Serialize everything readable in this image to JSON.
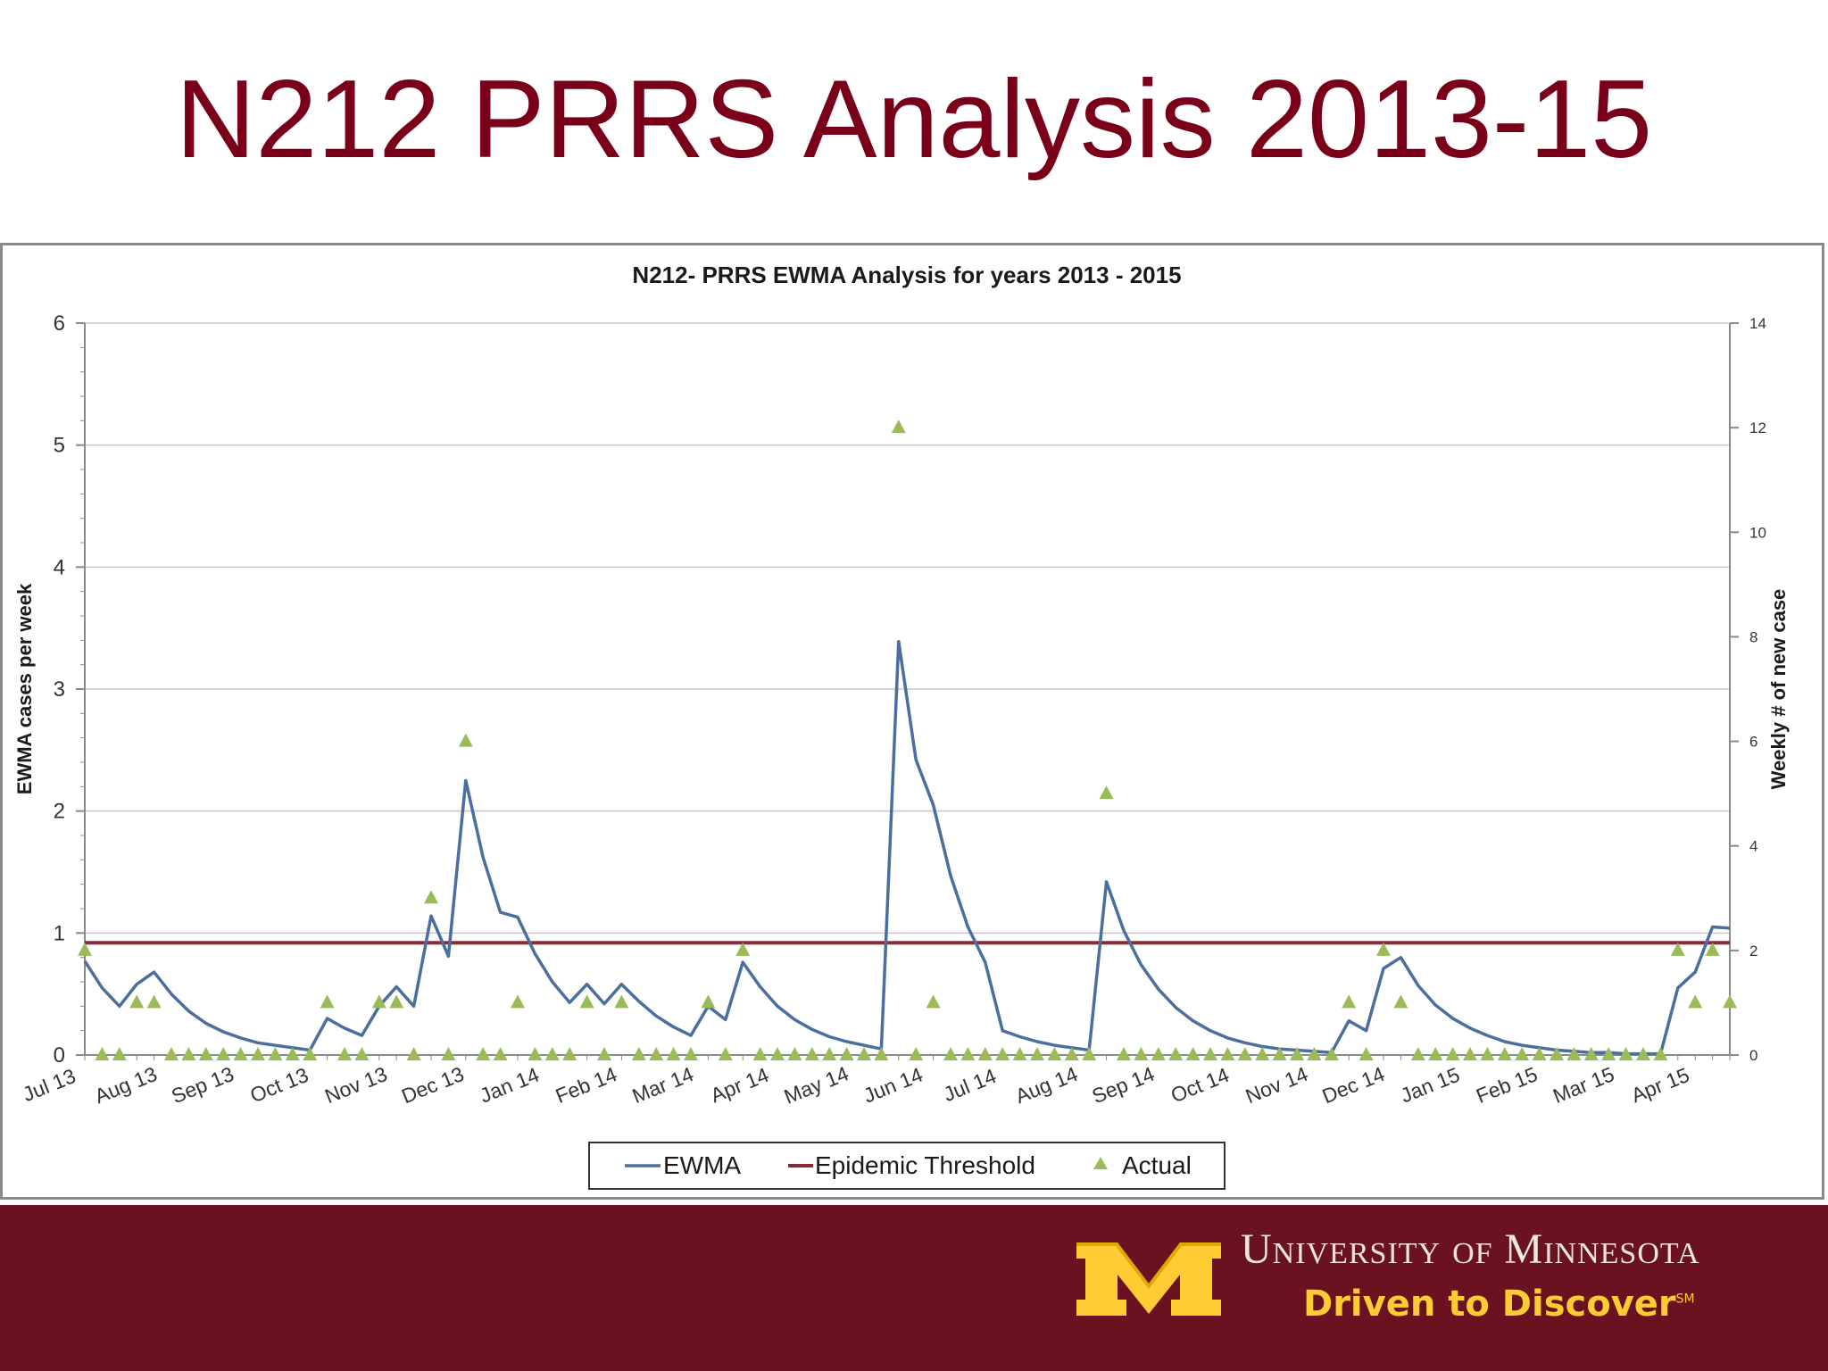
{
  "slide": {
    "title": "N212 PRRS Analysis 2013-15"
  },
  "footer": {
    "university": "University of Minnesota",
    "tagline": "Driven to Discover",
    "tagline_mark": "SM"
  },
  "colors": {
    "title": "#7a0019",
    "footer": "#6b1220",
    "gold": "#ffcc33",
    "ewma": "#4a6f9e",
    "threshold": "#8b2a36",
    "actual": "#9bbb59"
  },
  "chart_data": {
    "type": "line",
    "title": "N212- PRRS EWMA Analysis for years 2013 - 2015",
    "ylabel": "EWMA cases per week",
    "y2label": "Weekly # of new case",
    "ylim": [
      0,
      6
    ],
    "y2lim": [
      0,
      14
    ],
    "yticks": [
      "0",
      "1",
      "2",
      "3",
      "4",
      "5",
      "6"
    ],
    "y2ticks": [
      "0",
      "2",
      "4",
      "6",
      "8",
      "10",
      "12",
      "14"
    ],
    "grid": true,
    "legend_position": "bottom",
    "month_labels": [
      "Jul 13",
      "Aug 13",
      "Sep 13",
      "Oct 13",
      "Nov 13",
      "Dec 13",
      "Jan 14",
      "Feb 14",
      "Mar 14",
      "Apr 14",
      "May 14",
      "Jun 14",
      "Jul 14",
      "Aug 14",
      "Sep 14",
      "Oct 14",
      "Nov 14",
      "Dec 14",
      "Jan 15",
      "Feb 15",
      "Mar 15",
      "Apr 15"
    ],
    "series": [
      {
        "name": "EWMA",
        "kind": "line",
        "axis": "left",
        "values": [
          0.77,
          0.55,
          0.4,
          0.58,
          0.68,
          0.5,
          0.36,
          0.26,
          0.19,
          0.14,
          0.1,
          0.08,
          0.06,
          0.04,
          0.3,
          0.22,
          0.16,
          0.4,
          0.56,
          0.4,
          1.14,
          0.81,
          2.25,
          1.62,
          1.17,
          1.13,
          0.83,
          0.6,
          0.43,
          0.58,
          0.42,
          0.58,
          0.44,
          0.32,
          0.23,
          0.16,
          0.4,
          0.29,
          0.76,
          0.56,
          0.4,
          0.29,
          0.21,
          0.15,
          0.11,
          0.08,
          0.05,
          3.39,
          2.42,
          2.05,
          1.47,
          1.05,
          0.76,
          0.2,
          0.15,
          0.11,
          0.08,
          0.06,
          0.04,
          1.42,
          1.02,
          0.74,
          0.54,
          0.39,
          0.28,
          0.2,
          0.14,
          0.1,
          0.07,
          0.05,
          0.04,
          0.03,
          0.02,
          0.28,
          0.2,
          0.71,
          0.8,
          0.57,
          0.41,
          0.3,
          0.22,
          0.16,
          0.11,
          0.08,
          0.06,
          0.04,
          0.03,
          0.02,
          0.02,
          0.01,
          0.01,
          0.01,
          0.55,
          0.68,
          1.05,
          1.04
        ]
      },
      {
        "name": "Epidemic Threshold",
        "kind": "hline",
        "axis": "left",
        "value": 0.92
      },
      {
        "name": "Actual",
        "kind": "scatter",
        "axis": "right",
        "values": [
          2,
          0,
          0,
          1,
          1,
          0,
          0,
          0,
          0,
          0,
          0,
          0,
          0,
          0,
          1,
          0,
          0,
          1,
          1,
          0,
          3,
          0,
          6,
          0,
          0,
          1,
          0,
          0,
          0,
          1,
          0,
          1,
          0,
          0,
          0,
          0,
          1,
          0,
          2,
          0,
          0,
          0,
          0,
          0,
          0,
          0,
          0,
          12,
          0,
          1,
          0,
          0,
          0,
          0,
          0,
          0,
          0,
          0,
          0,
          5,
          0,
          0,
          0,
          0,
          0,
          0,
          0,
          0,
          0,
          0,
          0,
          0,
          0,
          1,
          0,
          2,
          1,
          0,
          0,
          0,
          0,
          0,
          0,
          0,
          0,
          0,
          0,
          0,
          0,
          0,
          0,
          0,
          2,
          1,
          2,
          1
        ]
      }
    ]
  }
}
